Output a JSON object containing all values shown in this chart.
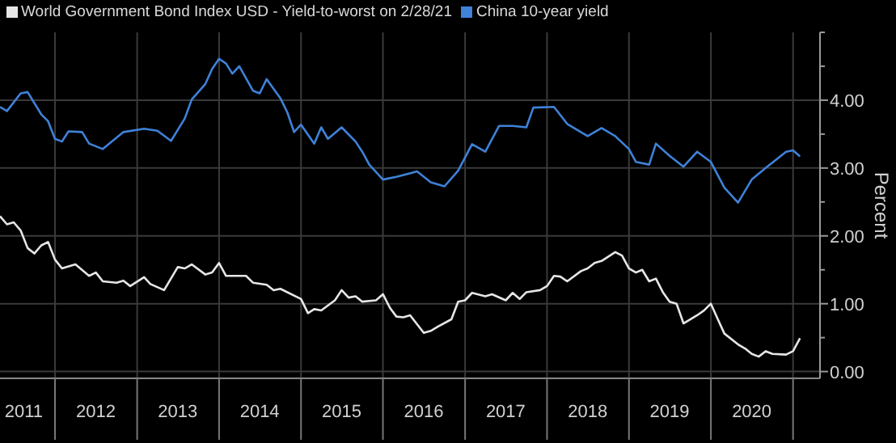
{
  "chart_data": {
    "type": "line",
    "ylabel": "Percent",
    "ylim": [
      -0.1,
      5
    ],
    "yticks": [
      {
        "value": 0,
        "label": "0.00"
      },
      {
        "value": 0.5,
        "label": null
      },
      {
        "value": 1,
        "label": "1.00"
      },
      {
        "value": 1.5,
        "label": null
      },
      {
        "value": 2,
        "label": "2.00"
      },
      {
        "value": 2.5,
        "label": null
      },
      {
        "value": 3,
        "label": "3.00"
      },
      {
        "value": 3.5,
        "label": null
      },
      {
        "value": 4,
        "label": "4.00"
      },
      {
        "value": 4.5,
        "label": null
      },
      {
        "value": 5,
        "label": null
      }
    ],
    "xlim": [
      "2011-05",
      "2021-05"
    ],
    "xticks": [
      {
        "value": "2011-08-15",
        "label": "2011"
      },
      {
        "value": "2012-01",
        "label": null
      },
      {
        "value": "2012-07",
        "label": "2012"
      },
      {
        "value": "2013-01",
        "label": null
      },
      {
        "value": "2013-07",
        "label": "2013"
      },
      {
        "value": "2014-01",
        "label": null
      },
      {
        "value": "2014-07",
        "label": "2014"
      },
      {
        "value": "2015-01",
        "label": null
      },
      {
        "value": "2015-07",
        "label": "2015"
      },
      {
        "value": "2016-01",
        "label": null
      },
      {
        "value": "2016-07",
        "label": "2016"
      },
      {
        "value": "2017-01",
        "label": null
      },
      {
        "value": "2017-07",
        "label": "2017"
      },
      {
        "value": "2018-01",
        "label": null
      },
      {
        "value": "2018-07",
        "label": "2018"
      },
      {
        "value": "2019-01",
        "label": null
      },
      {
        "value": "2019-07",
        "label": "2019"
      },
      {
        "value": "2020-01",
        "label": null
      },
      {
        "value": "2020-07",
        "label": "2020"
      },
      {
        "value": "2021-01",
        "label": null
      }
    ],
    "grid": true,
    "legend": "top left",
    "marker": "none",
    "line_style": "solid",
    "series": [
      {
        "name": "World Government Bond Index USD - Yield-to-worst on 2/28/21",
        "color": "#e6e6e6",
        "x": [
          "2011-05",
          "2011-06",
          "2011-07",
          "2011-08",
          "2011-09",
          "2011-10",
          "2011-11",
          "2011-12",
          "2012-01",
          "2012-02",
          "2012-04",
          "2012-06",
          "2012-07",
          "2012-08",
          "2012-10",
          "2012-11",
          "2012-12",
          "2013-02",
          "2013-03",
          "2013-05",
          "2013-07",
          "2013-08",
          "2013-09",
          "2013-11",
          "2013-12",
          "2014-01",
          "2014-02",
          "2014-05",
          "2014-06",
          "2014-08",
          "2014-09",
          "2014-10",
          "2015-01",
          "2015-02",
          "2015-03",
          "2015-04",
          "2015-06",
          "2015-07",
          "2015-08",
          "2015-09",
          "2015-10",
          "2015-12",
          "2016-01",
          "2016-02",
          "2016-03",
          "2016-04",
          "2016-05",
          "2016-07",
          "2016-08",
          "2016-09",
          "2016-11",
          "2016-12",
          "2017-01",
          "2017-02",
          "2017-04",
          "2017-05",
          "2017-07",
          "2017-08",
          "2017-09",
          "2017-10",
          "2017-12",
          "2018-01",
          "2018-02",
          "2018-03",
          "2018-04",
          "2018-06",
          "2018-07",
          "2018-08",
          "2018-09",
          "2018-11",
          "2018-12",
          "2019-01",
          "2019-02",
          "2019-03",
          "2019-04",
          "2019-05",
          "2019-06",
          "2019-07",
          "2019-08",
          "2019-09",
          "2019-11",
          "2019-12",
          "2020-01",
          "2020-02",
          "2020-03",
          "2020-05",
          "2020-06",
          "2020-07",
          "2020-08",
          "2020-09",
          "2020-10",
          "2020-12",
          "2021-01",
          "2021-02"
        ],
        "values": [
          2.29,
          2.17,
          2.2,
          2.08,
          1.82,
          1.74,
          1.86,
          1.91,
          1.65,
          1.52,
          1.58,
          1.41,
          1.46,
          1.33,
          1.31,
          1.34,
          1.26,
          1.39,
          1.29,
          1.2,
          1.54,
          1.52,
          1.58,
          1.43,
          1.46,
          1.6,
          1.41,
          1.41,
          1.31,
          1.28,
          1.2,
          1.22,
          1.07,
          0.86,
          0.92,
          0.9,
          1.05,
          1.2,
          1.09,
          1.11,
          1.03,
          1.05,
          1.14,
          0.94,
          0.81,
          0.8,
          0.83,
          0.57,
          0.6,
          0.66,
          0.77,
          1.03,
          1.05,
          1.16,
          1.11,
          1.14,
          1.05,
          1.16,
          1.07,
          1.17,
          1.2,
          1.26,
          1.41,
          1.4,
          1.33,
          1.48,
          1.52,
          1.6,
          1.63,
          1.76,
          1.71,
          1.52,
          1.46,
          1.5,
          1.33,
          1.37,
          1.17,
          1.03,
          1.0,
          0.71,
          0.83,
          0.9,
          1.0,
          0.77,
          0.56,
          0.4,
          0.34,
          0.26,
          0.22,
          0.3,
          0.26,
          0.25,
          0.3,
          0.49
        ]
      },
      {
        "name": "China 10-year yield",
        "color": "#3f82d8",
        "x": [
          "2011-05",
          "2011-06",
          "2011-08",
          "2011-09",
          "2011-11",
          "2011-12",
          "2012-01",
          "2012-02",
          "2012-03",
          "2012-05",
          "2012-06",
          "2012-08",
          "2012-11",
          "2013-02",
          "2013-04",
          "2013-06",
          "2013-08",
          "2013-09",
          "2013-11",
          "2013-12",
          "2014-01",
          "2014-02",
          "2014-03",
          "2014-04",
          "2014-06",
          "2014-07",
          "2014-08",
          "2014-10",
          "2014-11",
          "2014-12",
          "2015-01",
          "2015-03",
          "2015-04",
          "2015-05",
          "2015-07",
          "2015-09",
          "2015-10",
          "2015-11",
          "2016-01",
          "2016-03",
          "2016-06",
          "2016-08",
          "2016-10",
          "2016-12",
          "2017-02",
          "2017-04",
          "2017-06",
          "2017-08",
          "2017-10",
          "2017-11",
          "2018-02",
          "2018-04",
          "2018-07",
          "2018-09",
          "2018-11",
          "2019-01",
          "2019-02",
          "2019-04",
          "2019-05",
          "2019-07",
          "2019-09",
          "2019-11",
          "2020-01",
          "2020-03",
          "2020-05",
          "2020-07",
          "2020-09",
          "2020-12",
          "2021-01",
          "2021-02"
        ],
        "values": [
          3.9,
          3.84,
          4.1,
          4.12,
          3.79,
          3.69,
          3.43,
          3.39,
          3.54,
          3.53,
          3.36,
          3.28,
          3.53,
          3.58,
          3.55,
          3.4,
          3.73,
          4.01,
          4.24,
          4.46,
          4.61,
          4.54,
          4.39,
          4.5,
          4.14,
          4.1,
          4.31,
          4.03,
          3.82,
          3.53,
          3.64,
          3.36,
          3.6,
          3.43,
          3.6,
          3.39,
          3.24,
          3.05,
          2.83,
          2.87,
          2.95,
          2.79,
          2.73,
          2.96,
          3.35,
          3.24,
          3.62,
          3.62,
          3.6,
          3.89,
          3.9,
          3.65,
          3.47,
          3.59,
          3.47,
          3.28,
          3.09,
          3.05,
          3.36,
          3.18,
          3.02,
          3.24,
          3.09,
          2.71,
          2.49,
          2.83,
          3.0,
          3.24,
          3.26,
          3.17
        ]
      }
    ]
  }
}
